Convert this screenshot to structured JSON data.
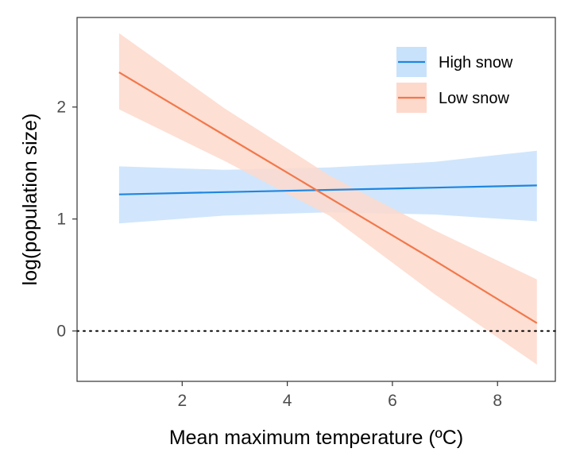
{
  "chart_data": {
    "type": "line",
    "title": "",
    "xlabel": "Mean maximum temperature (ºC)",
    "ylabel": "log(population size)",
    "xlim": [
      0.0,
      9.1
    ],
    "ylim": [
      -0.45,
      2.8
    ],
    "x_ticks": [
      2,
      4,
      6,
      8
    ],
    "y_ticks": [
      0,
      1,
      2
    ],
    "grid": false,
    "legend_position": "top-right",
    "reference_line": {
      "y": 0,
      "style": "dotted"
    },
    "series": [
      {
        "name": "High snow",
        "color": "#1f86e0",
        "band_color": "#c9e2fb",
        "x": [
          0.8,
          2.8,
          4.8,
          6.8,
          8.75
        ],
        "y": [
          1.22,
          1.24,
          1.26,
          1.28,
          1.3
        ],
        "lower": [
          0.96,
          1.03,
          1.06,
          1.04,
          0.98
        ],
        "upper": [
          1.47,
          1.44,
          1.46,
          1.51,
          1.61
        ]
      },
      {
        "name": "Low snow",
        "color": "#f2784b",
        "band_color": "#fdd9cc",
        "x": [
          0.8,
          2.8,
          4.8,
          6.8,
          8.75
        ],
        "y": [
          2.31,
          1.75,
          1.19,
          0.63,
          0.07
        ],
        "lower": [
          1.98,
          1.52,
          1.03,
          0.33,
          -0.3
        ],
        "upper": [
          2.66,
          1.99,
          1.39,
          0.9,
          0.46
        ]
      }
    ]
  }
}
